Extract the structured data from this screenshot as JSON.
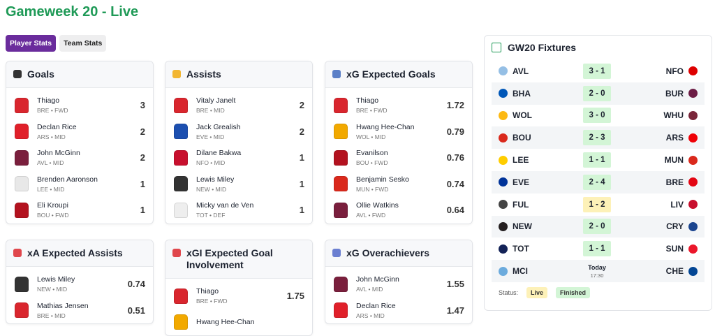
{
  "header": {
    "title": "Gameweek 20 - Live"
  },
  "tabs": [
    {
      "label": "Player Stats",
      "active": true
    },
    {
      "label": "Team Stats",
      "active": false
    }
  ],
  "cards": [
    {
      "title": "Goals",
      "icon_color": "#333333",
      "players": [
        {
          "name": "Thiago",
          "meta": "BRE • FWD",
          "value": 3,
          "color": "#d9262e"
        },
        {
          "name": "Declan Rice",
          "meta": "ARS • MID",
          "value": 2,
          "color": "#e0202a"
        },
        {
          "name": "John McGinn",
          "meta": "AVL • MID",
          "value": 2,
          "color": "#7a1f3d"
        },
        {
          "name": "Brenden Aaronson",
          "meta": "LEE • MID",
          "value": 1,
          "color": "#e8e8e8"
        },
        {
          "name": "Eli Kroupi",
          "meta": "BOU • FWD",
          "value": 1,
          "color": "#b3121f"
        }
      ]
    },
    {
      "title": "Assists",
      "icon_color": "#f2b632",
      "players": [
        {
          "name": "Vitaly Janelt",
          "meta": "BRE • MID",
          "value": 2,
          "color": "#d9262e"
        },
        {
          "name": "Jack Grealish",
          "meta": "EVE • MID",
          "value": 2,
          "color": "#1c4fb0"
        },
        {
          "name": "Dilane Bakwa",
          "meta": "NFO • MID",
          "value": 1,
          "color": "#c8102e"
        },
        {
          "name": "Lewis Miley",
          "meta": "NEW • MID",
          "value": 1,
          "color": "#333333"
        },
        {
          "name": "Micky van de Ven",
          "meta": "TOT • DEF",
          "value": 1,
          "color": "#eeeeee"
        }
      ]
    },
    {
      "title": "xG Expected Goals",
      "icon_color": "#5b7fc7",
      "players": [
        {
          "name": "Thiago",
          "meta": "BRE • FWD",
          "value": 1.72,
          "color": "#d9262e"
        },
        {
          "name": "Hwang Hee-Chan",
          "meta": "WOL • MID",
          "value": 0.79,
          "color": "#f2a900"
        },
        {
          "name": "Evanilson",
          "meta": "BOU • FWD",
          "value": 0.76,
          "color": "#b3121f"
        },
        {
          "name": "Benjamin Sesko",
          "meta": "MUN • FWD",
          "value": 0.74,
          "color": "#da291c"
        },
        {
          "name": "Ollie Watkins",
          "meta": "AVL • FWD",
          "value": 0.64,
          "color": "#7a1f3d"
        }
      ]
    },
    {
      "title": "xA Expected Assists",
      "icon_color": "#e0474c",
      "players": [
        {
          "name": "Lewis Miley",
          "meta": "NEW • MID",
          "value": 0.74,
          "color": "#333333"
        },
        {
          "name": "Mathias Jensen",
          "meta": "BRE • MID",
          "value": 0.51,
          "color": "#d9262e"
        }
      ]
    },
    {
      "title": "xGI Expected Goal Involvement",
      "icon_color": "#e0474c",
      "players": [
        {
          "name": "Thiago",
          "meta": "BRE • FWD",
          "value": 1.75,
          "color": "#d9262e"
        },
        {
          "name": "Hwang Hee-Chan",
          "color": "#f2a900"
        }
      ]
    },
    {
      "title": "xG Overachievers",
      "icon_color": "#6b7fd1",
      "players": [
        {
          "name": "John McGinn",
          "meta": "AVL • MID",
          "value": 1.55,
          "color": "#7a1f3d"
        },
        {
          "name": "Declan Rice",
          "meta": "ARS • MID",
          "value": 1.47,
          "color": "#e0202a"
        }
      ]
    }
  ],
  "fixtures": {
    "title": "GW20 Fixtures",
    "matches": [
      {
        "home": "AVL",
        "score": "3 - 1",
        "away": "NFO",
        "status": "Finished",
        "home_color": "#95bfe5",
        "away_color": "#dd0000"
      },
      {
        "home": "BHA",
        "score": "2 - 0",
        "away": "BUR",
        "status": "Finished",
        "home_color": "#0057b8",
        "away_color": "#6c1d45"
      },
      {
        "home": "WOL",
        "score": "3 - 0",
        "away": "WHU",
        "status": "Finished",
        "home_color": "#fdb913",
        "away_color": "#7a263a"
      },
      {
        "home": "BOU",
        "score": "2 - 3",
        "away": "ARS",
        "status": "Finished",
        "home_color": "#da291c",
        "away_color": "#ef0107"
      },
      {
        "home": "LEE",
        "score": "1 - 1",
        "away": "MUN",
        "status": "Finished",
        "home_color": "#ffcd00",
        "away_color": "#da291c"
      },
      {
        "home": "EVE",
        "score": "2 - 4",
        "away": "BRE",
        "status": "Finished",
        "home_color": "#003399",
        "away_color": "#e30613"
      },
      {
        "home": "FUL",
        "score": "1 - 2",
        "away": "LIV",
        "status": "Live",
        "home_color": "#444444",
        "away_color": "#c8102e"
      },
      {
        "home": "NEW",
        "score": "2 - 0",
        "away": "CRY",
        "status": "Finished",
        "home_color": "#241f20",
        "away_color": "#1b458f"
      },
      {
        "home": "TOT",
        "score": "1 - 1",
        "away": "SUN",
        "status": "Finished",
        "home_color": "#132257",
        "away_color": "#eb172b"
      },
      {
        "home": "MCI",
        "day": "Today",
        "time": "17:30",
        "away": "CHE",
        "home_color": "#6cabdd",
        "away_color": "#034694"
      }
    ],
    "legend": {
      "label": "Status:",
      "items": [
        {
          "label": "Live",
          "status": "Live"
        },
        {
          "label": "Finished",
          "status": "Finished"
        }
      ]
    },
    "status_colors": {
      "Live": "#fdf1b8",
      "Finished": "#d3f5d6"
    }
  }
}
